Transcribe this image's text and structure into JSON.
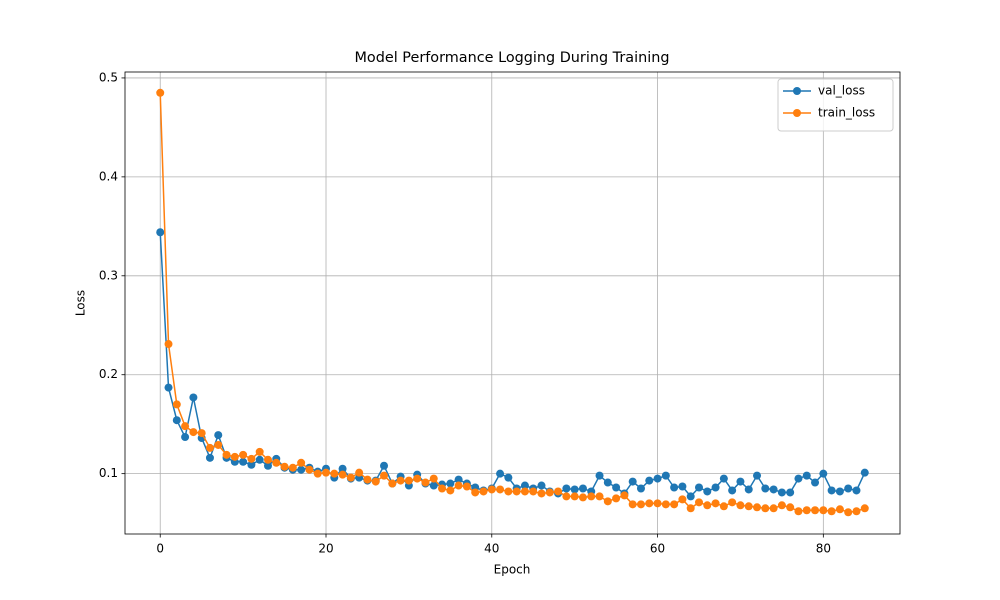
{
  "chart_data": {
    "type": "line",
    "title": "Model Performance Logging During Training",
    "x_label": "Epoch",
    "y_label": "Loss",
    "x": [
      0,
      1,
      2,
      3,
      4,
      5,
      6,
      7,
      8,
      9,
      10,
      11,
      12,
      13,
      14,
      15,
      16,
      17,
      18,
      19,
      20,
      21,
      22,
      23,
      24,
      25,
      26,
      27,
      28,
      29,
      30,
      31,
      32,
      33,
      34,
      35,
      36,
      37,
      38,
      39,
      40,
      41,
      42,
      43,
      44,
      45,
      46,
      47,
      48,
      49,
      50,
      51,
      52,
      53,
      54,
      55,
      56,
      57,
      58,
      59,
      60,
      61,
      62,
      63,
      64,
      65,
      66,
      67,
      68,
      69,
      70,
      71,
      72,
      73,
      74,
      75,
      76,
      77,
      78,
      79,
      80,
      81,
      82,
      83,
      84,
      85
    ],
    "series": [
      {
        "name": "val_loss",
        "color": "#1f77b4",
        "values": [
          0.344,
          0.187,
          0.154,
          0.137,
          0.177,
          0.136,
          0.116,
          0.139,
          0.116,
          0.112,
          0.112,
          0.109,
          0.114,
          0.108,
          0.115,
          0.106,
          0.104,
          0.104,
          0.106,
          0.102,
          0.105,
          0.096,
          0.105,
          0.095,
          0.096,
          0.093,
          0.093,
          0.108,
          0.09,
          0.097,
          0.088,
          0.099,
          0.09,
          0.088,
          0.089,
          0.09,
          0.094,
          0.09,
          0.086,
          0.083,
          0.085,
          0.1,
          0.096,
          0.085,
          0.088,
          0.085,
          0.088,
          0.082,
          0.08,
          0.085,
          0.084,
          0.085,
          0.082,
          0.098,
          0.091,
          0.086,
          0.08,
          0.092,
          0.085,
          0.093,
          0.095,
          0.098,
          0.086,
          0.087,
          0.077,
          0.086,
          0.082,
          0.086,
          0.095,
          0.083,
          0.092,
          0.084,
          0.098,
          0.085,
          0.084,
          0.081,
          0.081,
          0.095,
          0.098,
          0.091,
          0.1,
          0.083,
          0.082,
          0.085,
          0.083,
          0.101
        ]
      },
      {
        "name": "train_loss",
        "color": "#ff7f0e",
        "values": [
          0.485,
          0.231,
          0.17,
          0.148,
          0.142,
          0.141,
          0.126,
          0.129,
          0.119,
          0.117,
          0.119,
          0.115,
          0.122,
          0.114,
          0.111,
          0.107,
          0.106,
          0.111,
          0.104,
          0.1,
          0.101,
          0.1,
          0.099,
          0.096,
          0.101,
          0.094,
          0.092,
          0.098,
          0.09,
          0.093,
          0.093,
          0.095,
          0.091,
          0.095,
          0.085,
          0.083,
          0.088,
          0.087,
          0.081,
          0.082,
          0.084,
          0.084,
          0.082,
          0.082,
          0.082,
          0.082,
          0.08,
          0.081,
          0.082,
          0.077,
          0.077,
          0.076,
          0.077,
          0.077,
          0.072,
          0.075,
          0.078,
          0.069,
          0.069,
          0.07,
          0.07,
          0.069,
          0.069,
          0.074,
          0.065,
          0.071,
          0.068,
          0.07,
          0.067,
          0.071,
          0.068,
          0.067,
          0.066,
          0.065,
          0.065,
          0.068,
          0.066,
          0.062,
          0.063,
          0.063,
          0.063,
          0.062,
          0.064,
          0.061,
          0.062,
          0.065
        ]
      }
    ],
    "xlim": [
      -4.25,
      89.25
    ],
    "xticks": [
      0,
      20,
      40,
      60,
      80
    ],
    "ylim": [
      0.039,
      0.506
    ],
    "yticks": [
      0.1,
      0.2,
      0.3,
      0.4,
      0.5
    ],
    "grid": true,
    "legend_position": "upper right"
  }
}
